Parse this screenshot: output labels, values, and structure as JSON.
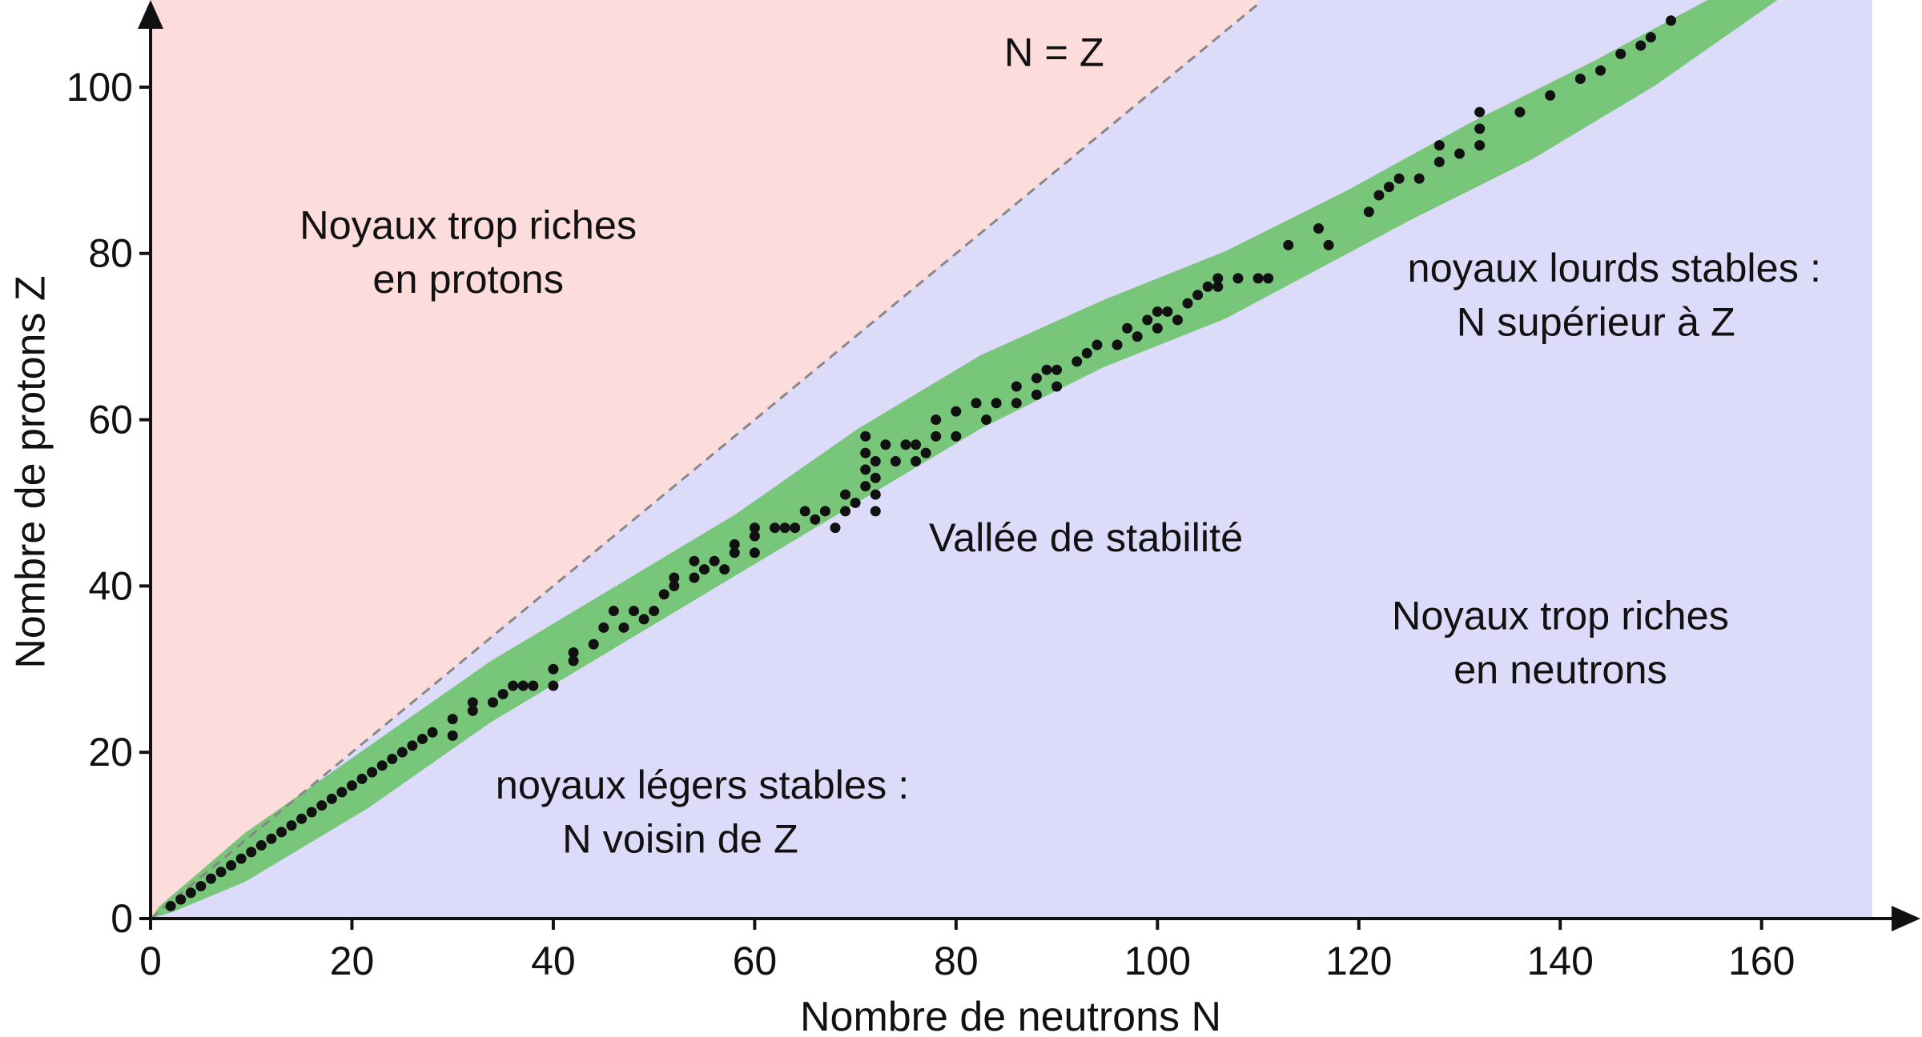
{
  "chart_data": {
    "type": "scatter",
    "x_label": "Nombre de neutrons N",
    "y_label": "Nombre de protons Z",
    "annotations": {
      "proton_rich": [
        "Noyaux trop riches",
        "en protons"
      ],
      "diagonal": "N = Z",
      "valley": "Vallée de stabilité",
      "heavy": [
        "noyaux lourds stables :",
        "N supérieur à Z"
      ],
      "neutron_rich": [
        "Noyaux trop riches",
        "en neutrons"
      ],
      "light": [
        "noyaux légers stables :",
        "N voisin de Z"
      ]
    },
    "color": "#111111",
    "xlim": [
      0,
      171
    ],
    "ylim": [
      0,
      110
    ],
    "xticks": [
      0,
      20,
      40,
      60,
      80,
      100,
      120,
      140,
      160
    ],
    "yticks": [
      0,
      20,
      40,
      60,
      80,
      100
    ],
    "x": [
      2,
      3,
      4,
      5,
      6,
      7,
      8,
      9,
      10,
      11,
      12,
      13,
      14,
      15,
      16,
      17,
      18,
      19,
      20,
      21,
      22,
      23,
      24,
      25,
      26,
      27,
      28,
      30,
      30,
      32,
      32,
      34,
      35,
      36,
      37,
      38,
      40,
      40,
      42,
      42,
      44,
      45,
      46,
      47,
      48,
      49,
      50,
      51,
      52,
      52,
      54,
      54,
      55,
      56,
      57,
      58,
      58,
      60,
      60,
      60,
      62,
      63,
      64,
      65,
      66,
      67,
      68,
      69,
      69,
      70,
      71,
      71,
      71,
      71,
      72,
      72,
      72,
      72,
      73,
      74,
      75,
      76,
      76,
      77,
      78,
      78,
      80,
      80,
      82,
      83,
      84,
      86,
      86,
      88,
      88,
      89,
      90,
      90,
      92,
      93,
      94,
      96,
      97,
      98,
      99,
      100,
      100,
      101,
      102,
      103,
      104,
      105,
      106,
      106,
      108,
      110,
      111,
      113,
      116,
      117,
      121,
      122,
      123,
      124,
      126,
      128,
      128,
      130,
      132,
      132,
      132,
      136,
      139,
      142,
      144,
      146,
      148,
      149,
      151
    ],
    "values": [
      1.5,
      2.3,
      3.1,
      3.9,
      4.8,
      5.6,
      6.4,
      7.2,
      8,
      8.8,
      9.6,
      10.4,
      11.2,
      12,
      12.8,
      13.6,
      14.4,
      15.2,
      16,
      16.8,
      17.6,
      18.4,
      19.2,
      20,
      20.8,
      21.6,
      22.4,
      22,
      24,
      25,
      26,
      26,
      27,
      28,
      28,
      28,
      28,
      30,
      31,
      32,
      33,
      35,
      37,
      35,
      37,
      36,
      37,
      39,
      40,
      41,
      41,
      43,
      42,
      43,
      42,
      44,
      45,
      44,
      46,
      47,
      47,
      47,
      47,
      49,
      48,
      49,
      47,
      49,
      51,
      50,
      52,
      54,
      56,
      58,
      49,
      51,
      53,
      55,
      57,
      55,
      57,
      55,
      57,
      56,
      58,
      60,
      58,
      61,
      62,
      60,
      62,
      62,
      64,
      63,
      65,
      66,
      64,
      66,
      67,
      68,
      69,
      69,
      71,
      70,
      72,
      73,
      71,
      73,
      72,
      74,
      75,
      76,
      76,
      77,
      77,
      77,
      77,
      81,
      83,
      81,
      85,
      87,
      88,
      89,
      89,
      91,
      93,
      92,
      93,
      95,
      97,
      97,
      99,
      101,
      102,
      104,
      105,
      106,
      108
    ]
  }
}
